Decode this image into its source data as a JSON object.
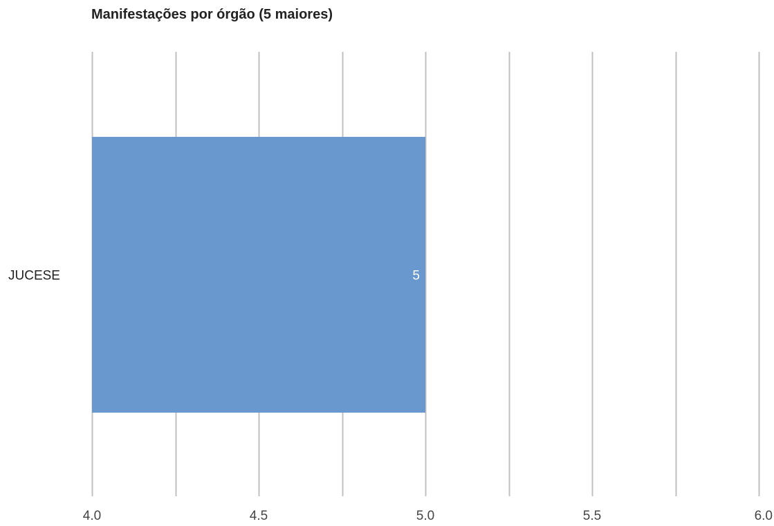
{
  "chart_data": {
    "type": "bar",
    "orientation": "horizontal",
    "title": "Manifestações por órgão (5 maiores)",
    "categories": [
      "JUCESE"
    ],
    "values": [
      5
    ],
    "data_labels": [
      "5"
    ],
    "xlim": [
      4.0,
      6.0
    ],
    "major_ticks": [
      4.0,
      4.5,
      5.0,
      5.5,
      6.0
    ],
    "tick_labels": [
      "4.0",
      "4.5",
      "5.0",
      "5.5",
      "6.0"
    ],
    "minor_gridlines": [
      4.25,
      4.75,
      5.25,
      5.75
    ],
    "grid": true,
    "legend": "none",
    "xlabel": "",
    "ylabel": "",
    "colors": {
      "bar": "#6898cd",
      "grid": "#c0c0c0",
      "label": "#ffffff"
    }
  }
}
